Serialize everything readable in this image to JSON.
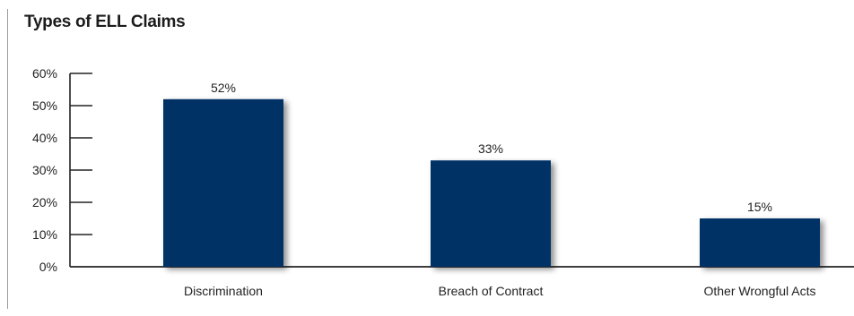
{
  "chart_data": {
    "type": "bar",
    "title": "Types of ELL Claims",
    "categories": [
      "Discrimination",
      "Breach of Contract",
      "Other Wrongful Acts"
    ],
    "values": [
      52,
      33,
      15
    ],
    "data_labels": [
      "52%",
      "33%",
      "15%"
    ],
    "yticks": [
      "0%",
      "10%",
      "20%",
      "30%",
      "40%",
      "50%",
      "60%"
    ],
    "ylim": [
      0,
      60
    ],
    "xlabel": "",
    "ylabel": "",
    "grid": false,
    "legend": "none",
    "bar_color": "#003366"
  }
}
